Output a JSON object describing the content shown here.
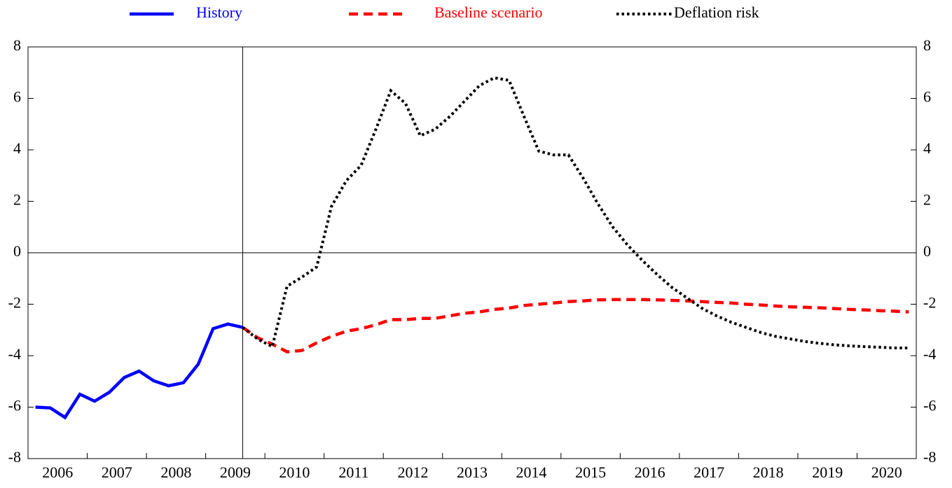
{
  "chart_data": {
    "type": "line",
    "x": [
      2006.125,
      2006.375,
      2006.625,
      2006.875,
      2007.125,
      2007.375,
      2007.625,
      2007.875,
      2008.125,
      2008.375,
      2008.625,
      2008.875,
      2009.125,
      2009.375,
      2009.625,
      2009.875,
      2010.125,
      2010.375,
      2010.625,
      2010.875,
      2011.125,
      2011.375,
      2011.625,
      2011.875,
      2012.125,
      2012.375,
      2012.625,
      2012.875,
      2013.125,
      2013.375,
      2013.625,
      2013.875,
      2014.125,
      2014.375,
      2014.625,
      2014.875,
      2015.125,
      2015.375,
      2015.625,
      2015.875,
      2016.125,
      2016.375,
      2016.625,
      2016.875,
      2017.125,
      2017.375,
      2017.625,
      2017.875,
      2018.125,
      2018.375,
      2018.625,
      2018.875,
      2019.125,
      2019.375,
      2019.625,
      2019.875,
      2020.125,
      2020.375,
      2020.625,
      2020.875
    ],
    "series": [
      {
        "name": "History",
        "color": "#0000ff",
        "style": "solid",
        "values": [
          -6.0,
          -6.03,
          -6.4,
          -5.5,
          -5.77,
          -5.42,
          -4.85,
          -4.6,
          -4.98,
          -5.17,
          -5.05,
          -4.33,
          -2.95,
          -2.77,
          -2.9,
          null,
          null,
          null,
          null,
          null,
          null,
          null,
          null,
          null,
          null,
          null,
          null,
          null,
          null,
          null,
          null,
          null,
          null,
          null,
          null,
          null,
          null,
          null,
          null,
          null,
          null,
          null,
          null,
          null,
          null,
          null,
          null,
          null,
          null,
          null,
          null,
          null,
          null,
          null,
          null,
          null,
          null,
          null,
          null,
          null
        ]
      },
      {
        "name": "Baseline scenario",
        "color": "#ff0000",
        "style": "dashed",
        "values": [
          null,
          null,
          null,
          null,
          null,
          null,
          null,
          null,
          null,
          null,
          null,
          null,
          null,
          null,
          -2.9,
          -3.3,
          -3.55,
          -3.85,
          -3.8,
          -3.5,
          -3.25,
          -3.05,
          -2.95,
          -2.8,
          -2.6,
          -2.6,
          -2.55,
          -2.55,
          -2.45,
          -2.35,
          -2.3,
          -2.2,
          -2.15,
          -2.05,
          -2.0,
          -1.95,
          -1.9,
          -1.87,
          -1.83,
          -1.82,
          -1.82,
          -1.82,
          -1.83,
          -1.85,
          -1.87,
          -1.9,
          -1.93,
          -1.95,
          -2.0,
          -2.03,
          -2.07,
          -2.1,
          -2.12,
          -2.14,
          -2.17,
          -2.2,
          -2.22,
          -2.25,
          -2.27,
          -2.3
        ]
      },
      {
        "name": "Deflation risk",
        "color": "#000000",
        "style": "dotted",
        "values": [
          null,
          null,
          null,
          null,
          null,
          null,
          null,
          null,
          null,
          null,
          null,
          null,
          null,
          null,
          -2.9,
          -3.35,
          -3.65,
          -1.3,
          -0.95,
          -0.55,
          1.8,
          2.8,
          3.4,
          4.8,
          6.3,
          5.8,
          4.55,
          4.8,
          5.3,
          5.9,
          6.5,
          6.8,
          6.7,
          5.3,
          3.95,
          3.8,
          3.8,
          2.9,
          1.9,
          1.0,
          0.3,
          -0.3,
          -0.85,
          -1.35,
          -1.75,
          -2.15,
          -2.45,
          -2.7,
          -2.9,
          -3.1,
          -3.25,
          -3.35,
          -3.45,
          -3.52,
          -3.58,
          -3.62,
          -3.65,
          -3.67,
          -3.7,
          -3.7
        ]
      }
    ],
    "xlim": [
      2006,
      2021
    ],
    "xticks": [
      {
        "value": 2006.5,
        "label": "2006"
      },
      {
        "value": 2007.5,
        "label": "2007"
      },
      {
        "value": 2008.5,
        "label": "2008"
      },
      {
        "value": 2009.5,
        "label": "2009"
      },
      {
        "value": 2010.5,
        "label": "2010"
      },
      {
        "value": 2011.5,
        "label": "2011"
      },
      {
        "value": 2012.5,
        "label": "2012"
      },
      {
        "value": 2013.5,
        "label": "2013"
      },
      {
        "value": 2014.5,
        "label": "2014"
      },
      {
        "value": 2015.5,
        "label": "2015"
      },
      {
        "value": 2016.5,
        "label": "2016"
      },
      {
        "value": 2017.5,
        "label": "2017"
      },
      {
        "value": 2018.5,
        "label": "2018"
      },
      {
        "value": 2019.5,
        "label": "2019"
      },
      {
        "value": 2020.5,
        "label": "2020"
      }
    ],
    "ylim": [
      -8,
      8
    ],
    "yticks": [
      -8,
      -6,
      -4,
      -2,
      0,
      2,
      4,
      6,
      8
    ],
    "reference_lines": {
      "x": 2009.625,
      "y": 0
    },
    "legend": "top"
  }
}
